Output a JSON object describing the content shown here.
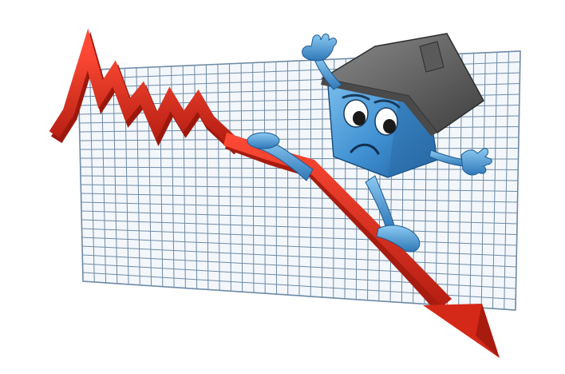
{
  "illustration": {
    "background_color": "#ffffff",
    "grid_color": "#6e8aa6",
    "grid_fill": "#f3f7fb",
    "arrow_color": "#e0301e",
    "arrow_shadow_color": "#a81c10",
    "house_body_color": "#4a9ad8",
    "house_roof_color": "#6a6a6a",
    "icons": [
      "grid-chart-icon",
      "falling-arrow-icon",
      "sad-house-character-icon"
    ]
  }
}
